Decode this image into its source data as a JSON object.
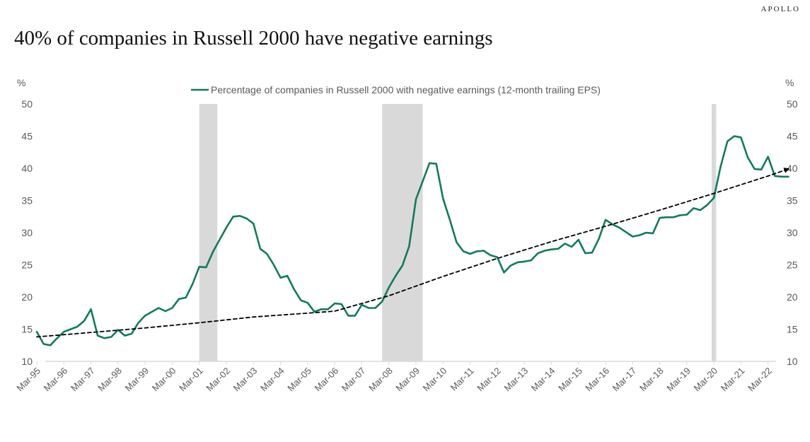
{
  "brand": "APOLLO",
  "title": "40% of companies in Russell 2000 have negative earnings",
  "colors": {
    "line": "#0f7b5f",
    "trend": "#000000",
    "recession": "#d9d9d9",
    "text": "#595959"
  },
  "chart_data": {
    "type": "line",
    "title": "40% of companies in Russell 2000 have negative earnings",
    "ylabel_left": "%",
    "ylabel_right": "%",
    "ylim": [
      10,
      50
    ],
    "yticks": [
      10,
      15,
      20,
      25,
      30,
      35,
      40,
      45,
      50
    ],
    "xlim": [
      "1995-03",
      "2023-03"
    ],
    "xtick_labels": [
      "Mar-95",
      "Mar-96",
      "Mar-97",
      "Mar-98",
      "Mar-99",
      "Mar-00",
      "Mar-01",
      "Mar-02",
      "Mar-03",
      "Mar-04",
      "Mar-05",
      "Mar-06",
      "Mar-07",
      "Mar-08",
      "Mar-09",
      "Mar-10",
      "Mar-11",
      "Mar-12",
      "Mar-13",
      "Mar-14",
      "Mar-15",
      "Mar-16",
      "Mar-17",
      "Mar-18",
      "Mar-19",
      "Mar-20",
      "Mar-21",
      "Mar-22"
    ],
    "grid": false,
    "legend_position": "top-center",
    "recessions": [
      {
        "start": "2001-03",
        "end": "2001-11"
      },
      {
        "start": "2007-12",
        "end": "2009-06"
      },
      {
        "start": "2020-02",
        "end": "2020-04"
      }
    ],
    "series": [
      {
        "name": "Percentage of companies in Russell 2000 with negative earnings (12-month trailing EPS)",
        "style": "solid",
        "x": [
          "1995-03",
          "1995-06",
          "1995-09",
          "1995-12",
          "1996-03",
          "1996-06",
          "1996-09",
          "1996-12",
          "1997-03",
          "1997-06",
          "1997-09",
          "1997-12",
          "1998-03",
          "1998-06",
          "1998-09",
          "1998-12",
          "1999-03",
          "1999-06",
          "1999-09",
          "1999-12",
          "2000-03",
          "2000-06",
          "2000-09",
          "2000-12",
          "2001-03",
          "2001-06",
          "2001-09",
          "2001-12",
          "2002-03",
          "2002-06",
          "2002-09",
          "2002-12",
          "2003-03",
          "2003-06",
          "2003-09",
          "2003-12",
          "2004-03",
          "2004-06",
          "2004-09",
          "2004-12",
          "2005-03",
          "2005-06",
          "2005-09",
          "2005-12",
          "2006-03",
          "2006-06",
          "2006-09",
          "2006-12",
          "2007-03",
          "2007-06",
          "2007-09",
          "2007-12",
          "2008-03",
          "2008-06",
          "2008-09",
          "2008-12",
          "2009-03",
          "2009-06",
          "2009-09",
          "2009-12",
          "2010-03",
          "2010-06",
          "2010-09",
          "2010-12",
          "2011-03",
          "2011-06",
          "2011-09",
          "2011-12",
          "2012-03",
          "2012-06",
          "2012-09",
          "2012-12",
          "2013-03",
          "2013-06",
          "2013-09",
          "2013-12",
          "2014-03",
          "2014-06",
          "2014-09",
          "2014-12",
          "2015-03",
          "2015-06",
          "2015-09",
          "2015-12",
          "2016-03",
          "2016-06",
          "2016-09",
          "2016-12",
          "2017-03",
          "2017-06",
          "2017-09",
          "2017-12",
          "2018-03",
          "2018-06",
          "2018-09",
          "2018-12",
          "2019-03",
          "2019-06",
          "2019-09",
          "2019-12",
          "2020-03",
          "2020-06",
          "2020-09",
          "2020-12",
          "2021-03",
          "2021-06",
          "2021-09",
          "2021-12",
          "2022-03",
          "2022-06",
          "2022-09",
          "2022-12"
        ],
        "values": [
          14.6,
          12.7,
          12.5,
          13.6,
          14.6,
          15.0,
          15.4,
          16.3,
          18.1,
          14.0,
          13.6,
          13.8,
          14.9,
          14.0,
          14.3,
          16.0,
          17.1,
          17.7,
          18.3,
          17.8,
          18.3,
          19.7,
          19.9,
          22.0,
          24.7,
          24.6,
          27.0,
          28.9,
          30.8,
          32.5,
          32.6,
          32.2,
          31.4,
          27.5,
          26.7,
          25.0,
          23.0,
          23.3,
          21.2,
          19.5,
          19.1,
          17.7,
          18.1,
          18.1,
          19.0,
          18.9,
          17.1,
          17.1,
          18.8,
          18.3,
          18.3,
          19.3,
          21.5,
          23.3,
          24.9,
          27.9,
          35.2,
          38.0,
          40.8,
          40.7,
          35.3,
          32.0,
          28.5,
          27.1,
          26.7,
          27.1,
          27.2,
          26.5,
          26.2,
          23.8,
          24.9,
          25.4,
          25.5,
          25.7,
          26.8,
          27.2,
          27.4,
          27.5,
          28.3,
          27.8,
          28.9,
          26.8,
          26.9,
          29.0,
          32.0,
          31.3,
          30.8,
          30.1,
          29.4,
          29.6,
          30.0,
          29.9,
          32.3,
          32.4,
          32.4,
          32.7,
          32.8,
          33.8,
          33.5,
          34.3,
          35.4,
          40.3,
          44.2,
          45.0,
          44.8,
          41.7,
          39.9,
          39.8,
          41.8,
          38.8,
          38.7,
          38.7
        ]
      },
      {
        "name": "",
        "style": "dashed",
        "x": [
          "1995-03",
          "1997-03",
          "1999-03",
          "2001-03",
          "2003-03",
          "2005-03",
          "2006-03",
          "2008-03",
          "2010-03",
          "2012-03",
          "2014-03",
          "2016-03",
          "2018-03",
          "2020-03",
          "2022-03",
          "2022-12"
        ],
        "values": [
          13.8,
          14.5,
          15.2,
          16.0,
          16.9,
          17.5,
          17.8,
          20.2,
          23.2,
          26.0,
          28.6,
          31.0,
          33.5,
          36.1,
          38.8,
          39.9
        ]
      }
    ]
  }
}
